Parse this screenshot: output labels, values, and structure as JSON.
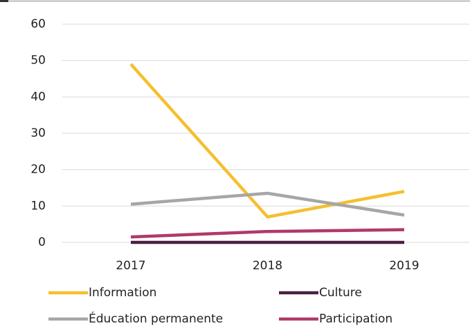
{
  "chart_data": {
    "type": "line",
    "categories": [
      "2017",
      "2018",
      "2019"
    ],
    "series": [
      {
        "name": "Information",
        "color": "#f5bf2e",
        "values": [
          49,
          7,
          14
        ]
      },
      {
        "name": "Culture",
        "color": "#4a2040",
        "values": [
          0,
          0,
          0
        ]
      },
      {
        "name": "Éducation permanente",
        "color": "#a6a6a6",
        "values": [
          10.5,
          13.5,
          7.5
        ]
      },
      {
        "name": "Participation",
        "color": "#b03a6a",
        "values": [
          1.5,
          3,
          3.5
        ]
      }
    ],
    "ylim": [
      0,
      60
    ],
    "yticks": [
      0,
      10,
      20,
      30,
      40,
      50,
      60
    ],
    "grid": true
  }
}
